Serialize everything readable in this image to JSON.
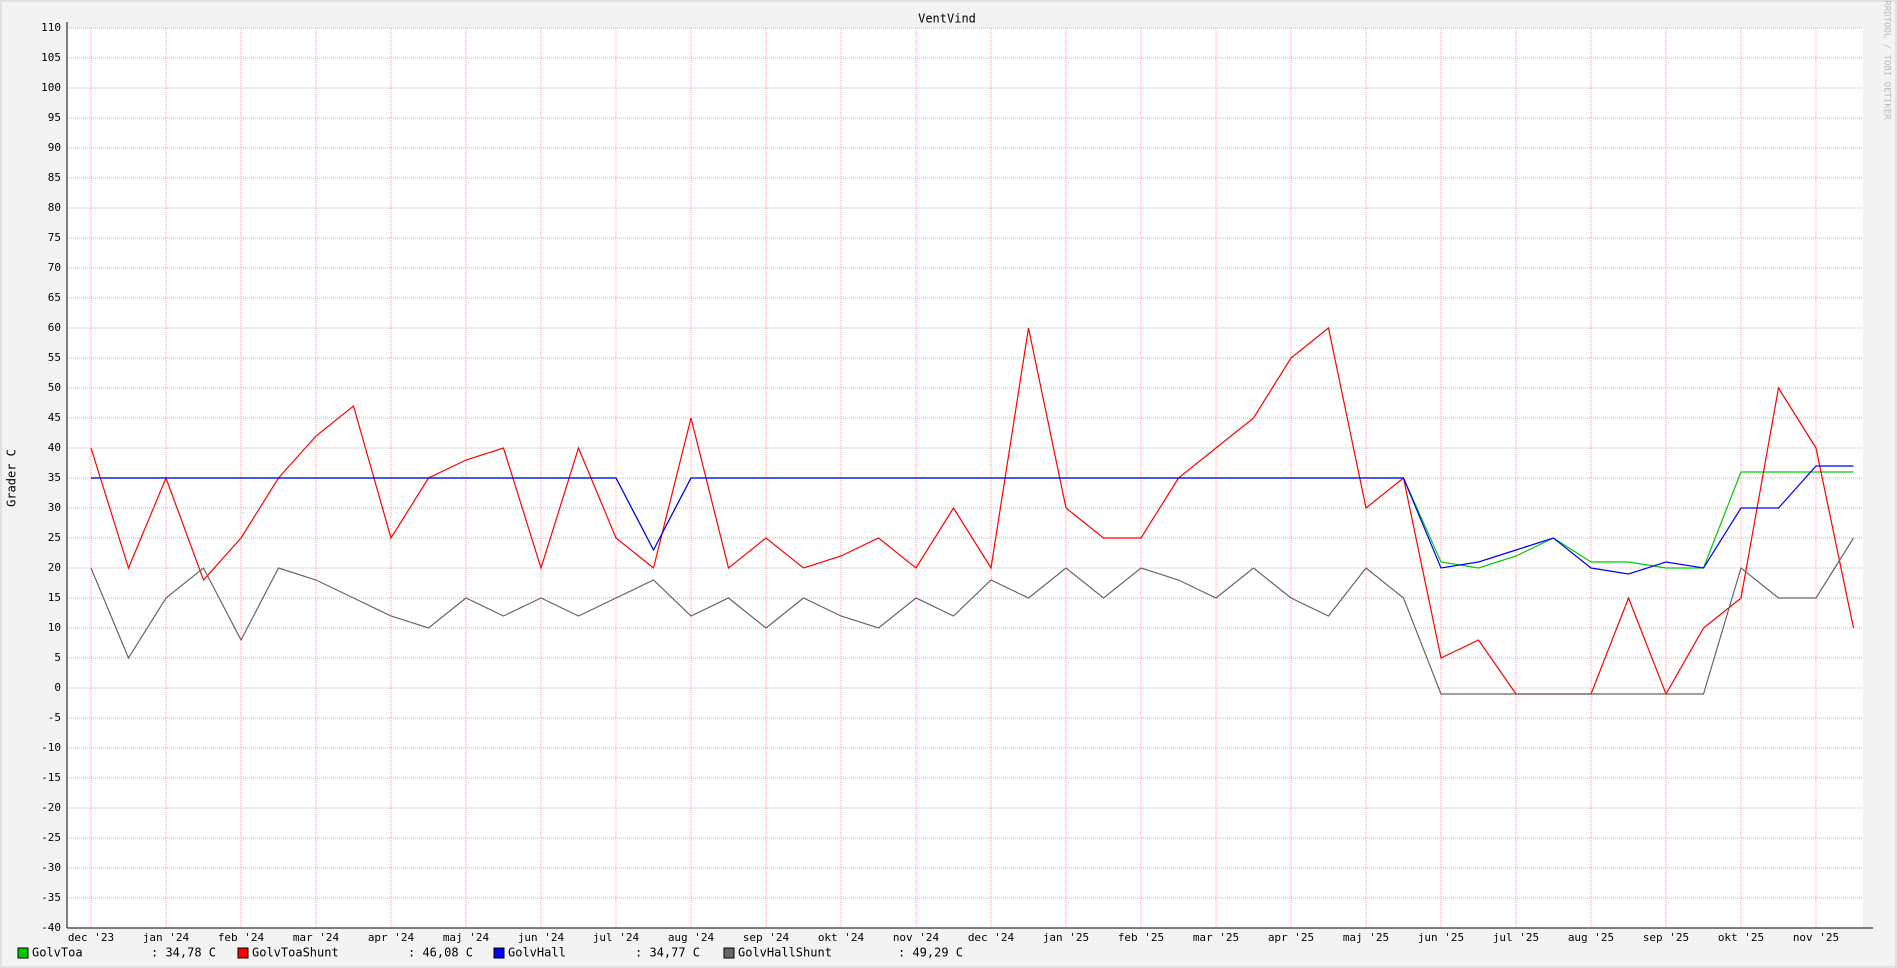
{
  "chart_data": {
    "type": "line",
    "title": "VentVind",
    "y_label": "Grader C",
    "watermark": "RRDTOOL / TOBI OETIKER",
    "categories": [
      "dec '23",
      null,
      "jan '24",
      null,
      "feb '24",
      null,
      "mar '24",
      null,
      "apr '24",
      null,
      "maj '24",
      null,
      "jun '24",
      null,
      "jul '24",
      null,
      "aug '24",
      null,
      "sep '24",
      null,
      "okt '24",
      null,
      "nov '24",
      null,
      "dec '24",
      null,
      "jan '25",
      null,
      "feb '25",
      null,
      "mar '25",
      null,
      "apr '25",
      null,
      "maj '25",
      null,
      "jun '25",
      null,
      "jul '25",
      null,
      "aug '25",
      null,
      "sep '25",
      null,
      "okt '25",
      null,
      "nov '25",
      null
    ],
    "ylim": [
      -40,
      110
    ],
    "yticks": [
      -40,
      -35,
      -30,
      -25,
      -20,
      -15,
      -10,
      -5,
      0,
      5,
      10,
      15,
      20,
      25,
      30,
      35,
      40,
      45,
      50,
      55,
      60,
      65,
      70,
      75,
      80,
      85,
      90,
      95,
      100,
      105,
      110
    ],
    "grid": true,
    "series": [
      {
        "name": "GolvToa",
        "color": "#00cc00",
        "current": ": 34,78 C",
        "values": [
          35,
          35,
          35,
          35,
          35,
          35,
          35,
          35,
          35,
          35,
          35,
          35,
          35,
          35,
          35,
          23,
          35,
          35,
          35,
          35,
          35,
          35,
          35,
          35,
          35,
          35,
          35,
          35,
          35,
          35,
          35,
          35,
          35,
          35,
          35,
          35,
          21,
          20,
          22,
          25,
          21,
          21,
          20,
          20,
          36,
          36,
          36,
          36
        ]
      },
      {
        "name": "GolvToaShunt",
        "color": "#ff0000",
        "current": ": 46,08 C",
        "values": [
          40,
          20,
          35,
          18,
          25,
          35,
          42,
          47,
          25,
          35,
          38,
          40,
          20,
          40,
          25,
          20,
          45,
          20,
          25,
          20,
          22,
          25,
          20,
          30,
          20,
          60,
          30,
          25,
          25,
          35,
          40,
          45,
          55,
          60,
          30,
          35,
          5,
          8,
          -1,
          -1,
          -1,
          15,
          -1,
          10,
          15,
          50,
          40,
          10
        ]
      },
      {
        "name": "GolvHall",
        "color": "#0000ff",
        "current": ": 34,77 C",
        "values": [
          35,
          35,
          35,
          35,
          35,
          35,
          35,
          35,
          35,
          35,
          35,
          35,
          35,
          35,
          35,
          23,
          35,
          35,
          35,
          35,
          35,
          35,
          35,
          35,
          35,
          35,
          35,
          35,
          35,
          35,
          35,
          35,
          35,
          35,
          35,
          35,
          20,
          21,
          23,
          25,
          20,
          19,
          21,
          20,
          30,
          30,
          37,
          37
        ]
      },
      {
        "name": "GolvHallShunt",
        "color": "#666666",
        "current": ": 49,29 C",
        "values": [
          20,
          5,
          15,
          20,
          8,
          20,
          18,
          15,
          12,
          10,
          15,
          12,
          15,
          12,
          15,
          18,
          12,
          15,
          10,
          15,
          12,
          10,
          15,
          12,
          18,
          15,
          20,
          15,
          20,
          18,
          15,
          20,
          15,
          12,
          20,
          15,
          -1,
          -1,
          -1,
          -1,
          -1,
          -1,
          -1,
          -1,
          20,
          15,
          15,
          25
        ]
      }
    ]
  }
}
